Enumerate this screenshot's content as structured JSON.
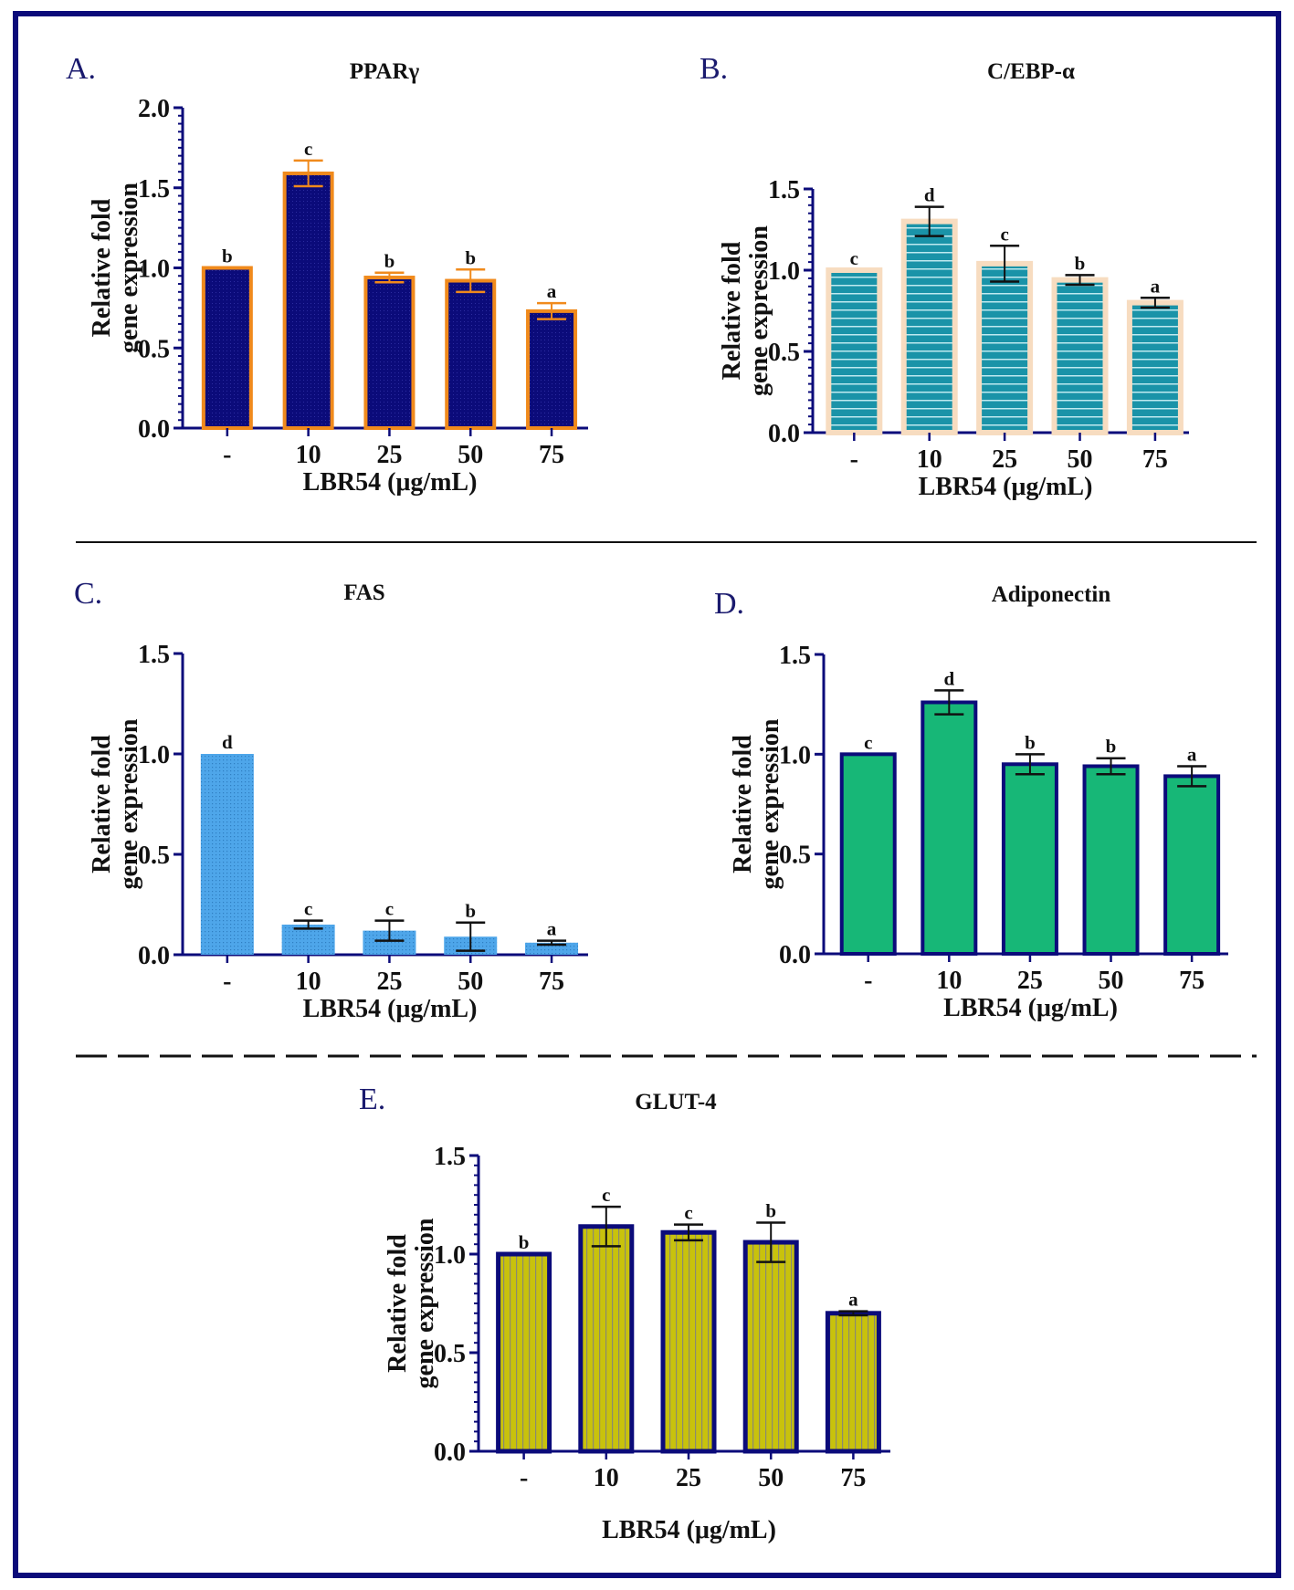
{
  "chart_data": [
    {
      "type": "bar",
      "panel": "A.",
      "title": "PPARγ",
      "xlabel": "LBR54 (μg/mL)",
      "ylabel": [
        "Relative fold",
        "gene expression"
      ],
      "categories": [
        "-",
        "10",
        "25",
        "50",
        "75"
      ],
      "values": [
        1.0,
        1.59,
        0.94,
        0.92,
        0.73
      ],
      "errors": [
        0.0,
        0.08,
        0.03,
        0.07,
        0.05
      ],
      "significance": [
        "b",
        "c",
        "b",
        "b",
        "a"
      ],
      "ylim": [
        0,
        2.0
      ],
      "yticks": [
        "0.0",
        "0.5",
        "1.0",
        "1.5",
        "2.0"
      ],
      "colors": {
        "fill": "#0b0b7a",
        "stroke": "#f08a1c",
        "error": "#f08a1c"
      }
    },
    {
      "type": "bar",
      "panel": "B.",
      "title": "C/EBP-α",
      "xlabel": "LBR54 (μg/mL)",
      "ylabel": [
        "Relative fold",
        "gene expression"
      ],
      "categories": [
        "-",
        "10",
        "25",
        "50",
        "75"
      ],
      "values": [
        1.0,
        1.3,
        1.04,
        0.94,
        0.8
      ],
      "errors": [
        0.0,
        0.09,
        0.11,
        0.03,
        0.03
      ],
      "significance": [
        "c",
        "d",
        "c",
        "b",
        "a"
      ],
      "ylim": [
        0,
        1.5
      ],
      "yticks": [
        "0.0",
        "0.5",
        "1.0",
        "1.5"
      ],
      "colors": {
        "fill": "#1a93a8",
        "stroke": "#f7dcc0",
        "error": "#111111"
      }
    },
    {
      "type": "bar",
      "panel": "C.",
      "title": "FAS",
      "xlabel": "LBR54 (μg/mL)",
      "ylabel": [
        "Relative fold",
        "gene expression"
      ],
      "categories": [
        "-",
        "10",
        "25",
        "50",
        "75"
      ],
      "values": [
        1.0,
        0.15,
        0.12,
        0.09,
        0.06
      ],
      "errors": [
        0.0,
        0.02,
        0.05,
        0.07,
        0.01
      ],
      "significance": [
        "d",
        "c",
        "c",
        "b",
        "a"
      ],
      "ylim": [
        0,
        1.5
      ],
      "yticks": [
        "0.0",
        "0.5",
        "1.0",
        "1.5"
      ],
      "colors": {
        "fill": "#4ea6ea",
        "stroke": "#4ea6ea",
        "error": "#111111"
      }
    },
    {
      "type": "bar",
      "panel": "D.",
      "title": "Adiponectin",
      "xlabel": "LBR54 (μg/mL)",
      "ylabel": [
        "Relative fold",
        "gene expression"
      ],
      "categories": [
        "-",
        "10",
        "25",
        "50",
        "75"
      ],
      "values": [
        1.0,
        1.26,
        0.95,
        0.94,
        0.89
      ],
      "errors": [
        0.0,
        0.06,
        0.05,
        0.04,
        0.05
      ],
      "significance": [
        "c",
        "d",
        "b",
        "b",
        "a"
      ],
      "ylim": [
        0,
        1.5
      ],
      "yticks": [
        "0.0",
        "0.5",
        "1.0",
        "1.5"
      ],
      "colors": {
        "fill": "#17b777",
        "stroke": "#0b0b7a",
        "error": "#111111"
      }
    },
    {
      "type": "bar",
      "panel": "E.",
      "title": "GLUT-4",
      "xlabel": "LBR54 (μg/mL)",
      "ylabel": [
        "Relative fold",
        "gene expression"
      ],
      "categories": [
        "-",
        "10",
        "25",
        "50",
        "75"
      ],
      "values": [
        1.0,
        1.14,
        1.11,
        1.06,
        0.7
      ],
      "errors": [
        0.0,
        0.1,
        0.04,
        0.1,
        0.01
      ],
      "significance": [
        "b",
        "c",
        "c",
        "b",
        "a"
      ],
      "ylim": [
        0,
        1.5
      ],
      "yticks": [
        "0.0",
        "0.5",
        "1.0",
        "1.5"
      ],
      "colors": {
        "fill": "#c8c20c",
        "stroke": "#0b0b7a",
        "error": "#111111"
      }
    }
  ],
  "colors": {
    "frame": "#0b0b7a",
    "axis": "#0b0b7a"
  }
}
